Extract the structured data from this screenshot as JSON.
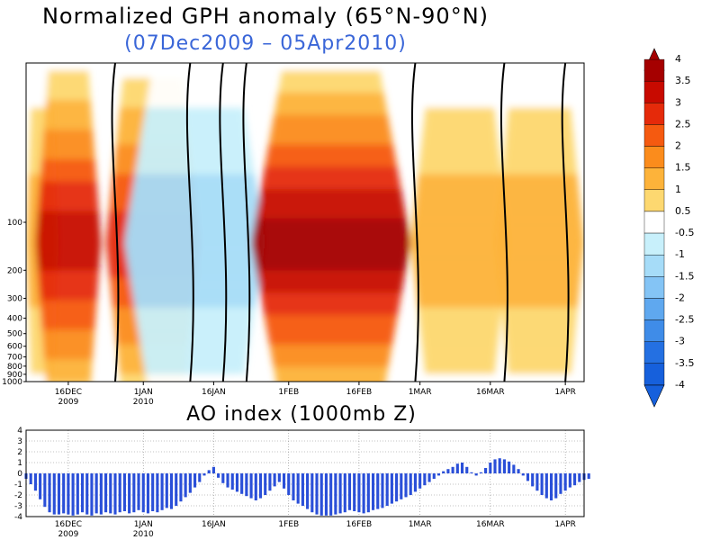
{
  "titles": {
    "main": "Normalized GPH anomaly (65°N-90°N)",
    "period": "(07Dec2009 – 05Apr2010)",
    "ao": "AO index (1000mb Z)"
  },
  "colors": {
    "title_period": "#3a66d8",
    "bars": "#2a4fd8",
    "grid": "#888888"
  },
  "colorbar": {
    "ticks": [
      "4",
      "3.5",
      "3",
      "2.5",
      "2",
      "1.5",
      "1",
      "0.5",
      "-0.5",
      "-1",
      "-1.5",
      "-2",
      "-2.5",
      "-3",
      "-3.5",
      "-4"
    ],
    "colors": [
      "#a50000",
      "#c80a00",
      "#e52a0a",
      "#f55a10",
      "#fb8c1c",
      "#fdb33a",
      "#fdd870",
      "#ffffff",
      "#c8f0fb",
      "#a6dcf8",
      "#84c4f5",
      "#5fa8ef",
      "#3f8ce8",
      "#2470e2",
      "#1660dc"
    ]
  },
  "chart_data": [
    {
      "type": "heatmap",
      "title": "Normalized GPH anomaly (65°N-90°N)",
      "subtitle": "(07Dec2009 – 05Apr2010)",
      "x_range": [
        "2009-12-07",
        "2010-04-05"
      ],
      "x_ticks": [
        {
          "date": "2009-12-16",
          "label": "16DEC",
          "sub": "2009"
        },
        {
          "date": "2010-01-01",
          "label": "1JAN",
          "sub": "2010"
        },
        {
          "date": "2010-01-16",
          "label": "16JAN",
          "sub": ""
        },
        {
          "date": "2010-02-01",
          "label": "1FEB",
          "sub": ""
        },
        {
          "date": "2010-02-16",
          "label": "16FEB",
          "sub": ""
        },
        {
          "date": "2010-03-01",
          "label": "1MAR",
          "sub": ""
        },
        {
          "date": "2010-03-16",
          "label": "16MAR",
          "sub": ""
        },
        {
          "date": "2010-04-01",
          "label": "1APR",
          "sub": ""
        }
      ],
      "y_scale": "log-pressure",
      "y_range_hPa": [
        1000,
        10
      ],
      "y_ticks": [
        "1000",
        "900",
        "800",
        "700",
        "600",
        "500",
        "400",
        "300",
        "200",
        "100"
      ],
      "y_tick_values": [
        1000,
        900,
        800,
        700,
        600,
        500,
        400,
        300,
        200,
        100
      ],
      "levels": [
        -4,
        -3.5,
        -3,
        -2.5,
        -2,
        -1.5,
        -1,
        -0.5,
        0.5,
        1,
        1.5,
        2,
        2.5,
        3,
        3.5,
        4
      ],
      "features": [
        {
          "label": "positive anomaly, upper levels",
          "start": "2009-12-07",
          "end": "2009-12-14",
          "peak": 1.5
        },
        {
          "label": "deep positive anomaly",
          "start": "2009-12-09",
          "end": "2009-12-23",
          "peak": 3.5
        },
        {
          "label": "positive anomaly",
          "start": "2009-12-24",
          "end": "2010-01-13",
          "peak": 3.0
        },
        {
          "label": "negative anomaly, upper levels",
          "start": "2009-12-28",
          "end": "2010-01-27",
          "peak": -1.5
        },
        {
          "label": "strong positive anomaly",
          "start": "2010-01-24",
          "end": "2010-02-27",
          "peak": 4.0
        },
        {
          "label": "positive anomaly",
          "start": "2010-02-27",
          "end": "2010-03-20",
          "peak": 1.5
        },
        {
          "label": "positive anomaly",
          "start": "2010-03-17",
          "end": "2010-04-05",
          "peak": 1.5
        }
      ]
    },
    {
      "type": "bar",
      "title": "AO index (1000mb Z)",
      "x_start": "2009-12-07",
      "ylim": [
        -4,
        4
      ],
      "y_ticks": [
        "4",
        "3",
        "2",
        "1",
        "0",
        "-1",
        "-2",
        "-3",
        "-4"
      ],
      "x_ticks": [
        {
          "date": "2009-12-16",
          "label": "16DEC",
          "sub": "2009"
        },
        {
          "date": "2010-01-01",
          "label": "1JAN",
          "sub": "2010"
        },
        {
          "date": "2010-01-16",
          "label": "16JAN",
          "sub": ""
        },
        {
          "date": "2010-02-01",
          "label": "1FEB",
          "sub": ""
        },
        {
          "date": "2010-02-16",
          "label": "16FEB",
          "sub": ""
        },
        {
          "date": "2010-03-01",
          "label": "1MAR",
          "sub": ""
        },
        {
          "date": "2010-03-16",
          "label": "16MAR",
          "sub": ""
        },
        {
          "date": "2010-04-01",
          "label": "1APR",
          "sub": ""
        }
      ],
      "values": [
        -0.5,
        -1.0,
        -1.6,
        -2.4,
        -3.1,
        -3.6,
        -3.8,
        -3.8,
        -3.7,
        -3.8,
        -3.9,
        -3.8,
        -3.6,
        -3.8,
        -3.9,
        -3.7,
        -3.8,
        -3.6,
        -3.7,
        -3.8,
        -3.6,
        -3.5,
        -3.7,
        -3.6,
        -3.4,
        -3.6,
        -3.7,
        -3.5,
        -3.6,
        -3.4,
        -3.2,
        -3.3,
        -3.0,
        -2.6,
        -2.2,
        -1.8,
        -1.3,
        -0.8,
        -0.2,
        0.3,
        0.6,
        -0.4,
        -0.9,
        -1.3,
        -1.5,
        -1.7,
        -1.9,
        -2.1,
        -2.3,
        -2.5,
        -2.3,
        -2.0,
        -1.6,
        -1.2,
        -0.8,
        -1.4,
        -2.0,
        -2.5,
        -2.8,
        -3.0,
        -3.3,
        -3.6,
        -3.8,
        -3.9,
        -3.9,
        -3.9,
        -3.8,
        -3.7,
        -3.6,
        -3.4,
        -3.5,
        -3.6,
        -3.7,
        -3.6,
        -3.4,
        -3.3,
        -3.2,
        -3.0,
        -2.8,
        -2.6,
        -2.4,
        -2.2,
        -2.0,
        -1.7,
        -1.4,
        -1.1,
        -0.8,
        -0.5,
        -0.2,
        0.2,
        0.4,
        0.6,
        0.9,
        1.0,
        0.6,
        0.1,
        -0.2,
        0.1,
        0.5,
        1.0,
        1.3,
        1.4,
        1.3,
        1.1,
        0.8,
        0.4,
        -0.2,
        -0.7,
        -1.2,
        -1.6,
        -2.0,
        -2.3,
        -2.5,
        -2.3,
        -1.9,
        -1.6,
        -1.3,
        -1.1,
        -0.8,
        -0.6,
        -0.5
      ]
    }
  ]
}
